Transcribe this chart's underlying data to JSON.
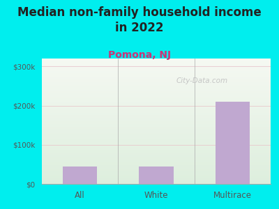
{
  "title": "Median non-family household income\nin 2022",
  "subtitle": "Pomona, NJ",
  "categories": [
    "All",
    "White",
    "Multirace"
  ],
  "values": [
    45000,
    45000,
    210000
  ],
  "bar_color": "#c0a8d0",
  "background_color": "#00EEEE",
  "plot_bg_topleft": "#e8f0e0",
  "plot_bg_topright": "#f8f8f5",
  "plot_bg_bottom": "#ddeedd",
  "yticks": [
    0,
    100000,
    200000,
    300000
  ],
  "ytick_labels": [
    "$0",
    "$100k",
    "$200k",
    "$300k"
  ],
  "ylim": [
    0,
    320000
  ],
  "title_fontsize": 12,
  "subtitle_fontsize": 10,
  "subtitle_color": "#cc3377",
  "title_color": "#222222",
  "tick_color": "#555555",
  "watermark": "City-Data.com",
  "grid_color": "#e8c8cc",
  "grid_linewidth": 0.6
}
